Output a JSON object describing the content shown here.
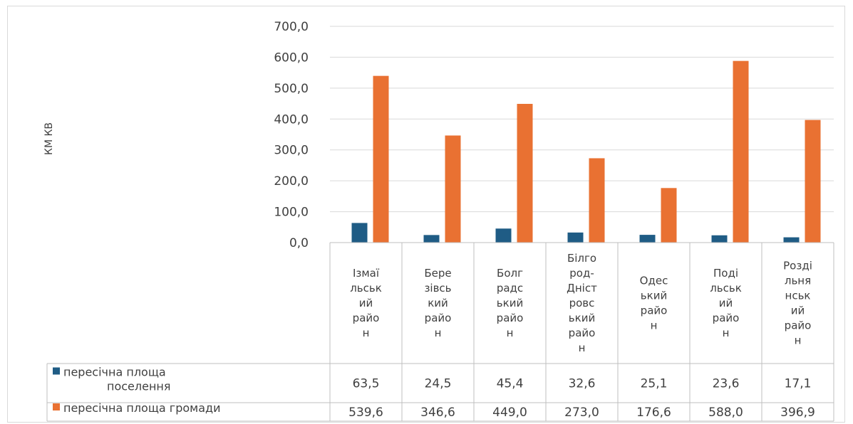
{
  "chart_data": {
    "type": "bar",
    "title": "",
    "xlabel": "",
    "ylabel": "КМ КВ",
    "ylim": [
      0,
      700
    ],
    "y_ticks": [
      "0,0",
      "100,0",
      "200,0",
      "300,0",
      "400,0",
      "500,0",
      "600,0",
      "700,0"
    ],
    "grid": true,
    "legend": "data-table",
    "categories": [
      "Ізмаїльський район",
      "Березівський район",
      "Болградський район",
      "Білгород-Дністровський район",
      "Одеський район",
      "Подільський район",
      "Роздільнянський район"
    ],
    "category_lines": [
      [
        "Ізмаї",
        "льськ",
        "ий",
        "райо",
        "н"
      ],
      [
        "Бере",
        "зівсь",
        "кий",
        "райо",
        "н"
      ],
      [
        "Болг",
        "радс",
        "ький",
        "райо",
        "н"
      ],
      [
        "Білго",
        "род-",
        "Дніст",
        "ровс",
        "ький",
        "райо",
        "н"
      ],
      [
        "Одес",
        "ький",
        "райо",
        "н"
      ],
      [
        "Поді",
        "льськ",
        "ий",
        "райо",
        "н"
      ],
      [
        "Розді",
        "льня",
        "нськ",
        "ий",
        "райо",
        "н"
      ]
    ],
    "series": [
      {
        "name": "пересічна площа поселення",
        "name_lines": [
          "пересічна площа",
          "поселення"
        ],
        "color": "#1f5c85",
        "values": [
          63.5,
          24.5,
          45.4,
          32.6,
          25.1,
          23.6,
          17.1
        ],
        "value_labels": [
          "63,5",
          "24,5",
          "45,4",
          "32,6",
          "25,1",
          "23,6",
          "17,1"
        ]
      },
      {
        "name": "пересічна площа громади",
        "name_lines": [
          "пересічна площа громади"
        ],
        "color": "#e97132",
        "values": [
          539.6,
          346.6,
          449.0,
          273.0,
          176.6,
          588.0,
          396.9
        ],
        "value_labels": [
          "539,6",
          "346,6",
          "449,0",
          "273,0",
          "176,6",
          "588,0",
          "396,9"
        ]
      }
    ]
  }
}
